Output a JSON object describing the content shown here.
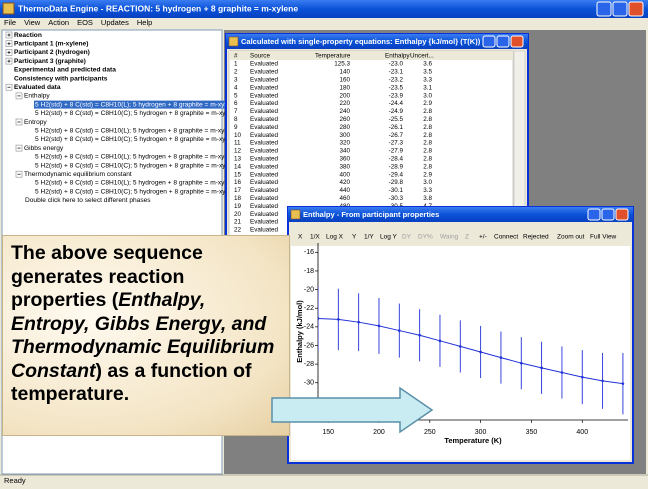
{
  "window": {
    "title": "ThermoData Engine - REACTION: 5 hydrogen + 8 graphite = m-xylene",
    "menu": [
      "File",
      "View",
      "Action",
      "EOS",
      "Updates",
      "Help"
    ],
    "status": "Ready"
  },
  "tree": [
    {
      "label": "Reaction",
      "expanded": false
    },
    {
      "label": "Participant 1 (m-xylene)",
      "expanded": false
    },
    {
      "label": "Participant 2 (hydrogen)",
      "expanded": false
    },
    {
      "label": "Participant 3 (graphite)",
      "expanded": false
    },
    {
      "label": "Experimental and predicted data"
    },
    {
      "label": "Consistency with participants"
    },
    {
      "label": "Evaluated data",
      "expanded": true,
      "children": [
        {
          "label": "Enthalpy",
          "expanded": true,
          "children": [
            {
              "label": "5 H2(std) + 8 C(std) = C8H10(L); 5 hydrogen + 8 graphite = m-xylene",
              "selected": true
            },
            {
              "label": "5 H2(std) + 8 C(std) = C8H10(C); 5 hydrogen + 8 graphite = m-xylene"
            }
          ]
        },
        {
          "label": "Entropy",
          "expanded": true,
          "children": [
            {
              "label": "5 H2(std) + 8 C(std) = C8H10(L); 5 hydrogen + 8 graphite = m-xylene"
            },
            {
              "label": "5 H2(std) + 8 C(std) = C8H10(C); 5 hydrogen + 8 graphite = m-xylene"
            }
          ]
        },
        {
          "label": "Gibbs energy",
          "expanded": true,
          "children": [
            {
              "label": "5 H2(std) + 8 C(std) = C8H10(L); 5 hydrogen + 8 graphite = m-xylene"
            },
            {
              "label": "5 H2(std) + 8 C(std) = C8H10(C); 5 hydrogen + 8 graphite = m-xylene"
            }
          ]
        },
        {
          "label": "Thermodynamic equilibrium constant",
          "expanded": true,
          "children": [
            {
              "label": "5 H2(std) + 8 C(std) = C8H10(L); 5 hydrogen + 8 graphite = m-xylene"
            },
            {
              "label": "5 H2(std) + 8 C(std) = C8H10(C); 5 hydrogen + 8 graphite = m-xylene"
            }
          ]
        },
        {
          "label": "Double click here to select different phases"
        }
      ]
    }
  ],
  "table_window": {
    "title": "Calculated with single-property equations: Enthalpy {kJ/mol} (T(K))",
    "columns": [
      "#",
      "Source",
      "Temperature",
      "Enthalpy",
      "Uncert..."
    ],
    "rows": [
      [
        "1",
        "Evaluated",
        "125.3",
        "-23.0",
        "3.6"
      ],
      [
        "2",
        "Evaluated",
        "140",
        "-23.1",
        "3.5"
      ],
      [
        "3",
        "Evaluated",
        "160",
        "-23.2",
        "3.3"
      ],
      [
        "4",
        "Evaluated",
        "180",
        "-23.5",
        "3.1"
      ],
      [
        "5",
        "Evaluated",
        "200",
        "-23.9",
        "3.0"
      ],
      [
        "6",
        "Evaluated",
        "220",
        "-24.4",
        "2.9"
      ],
      [
        "7",
        "Evaluated",
        "240",
        "-24.9",
        "2.8"
      ],
      [
        "8",
        "Evaluated",
        "260",
        "-25.5",
        "2.8"
      ],
      [
        "9",
        "Evaluated",
        "280",
        "-26.1",
        "2.8"
      ],
      [
        "10",
        "Evaluated",
        "300",
        "-26.7",
        "2.8"
      ],
      [
        "11",
        "Evaluated",
        "320",
        "-27.3",
        "2.8"
      ],
      [
        "12",
        "Evaluated",
        "340",
        "-27.9",
        "2.8"
      ],
      [
        "13",
        "Evaluated",
        "360",
        "-28.4",
        "2.8"
      ],
      [
        "14",
        "Evaluated",
        "380",
        "-28.9",
        "2.8"
      ],
      [
        "15",
        "Evaluated",
        "400",
        "-29.4",
        "2.9"
      ],
      [
        "16",
        "Evaluated",
        "420",
        "-29.8",
        "3.0"
      ],
      [
        "17",
        "Evaluated",
        "440",
        "-30.1",
        "3.3"
      ],
      [
        "18",
        "Evaluated",
        "460",
        "-30.3",
        "3.8"
      ],
      [
        "19",
        "Evaluated",
        "480",
        "-30.5",
        "4.7"
      ],
      [
        "20",
        "Evaluated"
      ],
      [
        "21",
        "Evaluated"
      ],
      [
        "22",
        "Evaluated"
      ]
    ]
  },
  "plot_window": {
    "title": "Enthalpy - From participant properties",
    "toolbar": [
      {
        "label": "X",
        "enabled": true
      },
      {
        "label": "1/X",
        "enabled": true
      },
      {
        "label": "Log X",
        "enabled": true
      },
      {
        "label": "Y",
        "enabled": true
      },
      {
        "label": "1/Y",
        "enabled": true
      },
      {
        "label": "Log Y",
        "enabled": true
      },
      {
        "label": "DY",
        "enabled": false
      },
      {
        "label": "DY%",
        "enabled": false
      },
      {
        "label": "Waing",
        "enabled": false
      },
      {
        "label": "Z",
        "enabled": false
      },
      {
        "label": "+/-",
        "enabled": true
      },
      {
        "label": "Connect",
        "enabled": true
      },
      {
        "label": "Rejected",
        "enabled": true
      },
      {
        "label": "Zoom out",
        "enabled": true
      },
      {
        "label": "Full View",
        "enabled": true
      }
    ]
  },
  "chart_data": {
    "type": "line",
    "x_label": "Temperature (K)",
    "y_label": "Enthalpy (kJ/mol)",
    "x": [
      140,
      160,
      180,
      200,
      220,
      240,
      260,
      280,
      300,
      320,
      340,
      360,
      380,
      400,
      420,
      440
    ],
    "series": [
      {
        "color": "#2030d8",
        "values": [
          -23.1,
          -23.2,
          -23.5,
          -23.9,
          -24.4,
          -24.9,
          -25.5,
          -26.1,
          -26.7,
          -27.3,
          -27.9,
          -28.4,
          -28.9,
          -29.4,
          -29.8,
          -30.1
        ],
        "errors": [
          3.5,
          3.3,
          3.1,
          3.0,
          2.9,
          2.8,
          2.8,
          2.8,
          2.8,
          2.8,
          2.8,
          2.8,
          2.8,
          2.9,
          3.0,
          3.3
        ]
      }
    ],
    "xlim": [
      140,
      445
    ],
    "ylim": [
      -34,
      -15
    ],
    "xticks": [
      150,
      200,
      250,
      300,
      350,
      400
    ],
    "yticks": [
      -16,
      -18,
      -20,
      -22,
      -24,
      -26,
      -28,
      -30
    ]
  },
  "callout": {
    "segments": [
      {
        "text": "The above sequence generates reaction properties ("
      },
      {
        "text": "Enthalpy, Entropy, Gibbs Energy, and Thermodynamic Equilibrium Constant",
        "italic": true
      },
      {
        "text": ") as a function of temperature."
      }
    ]
  }
}
